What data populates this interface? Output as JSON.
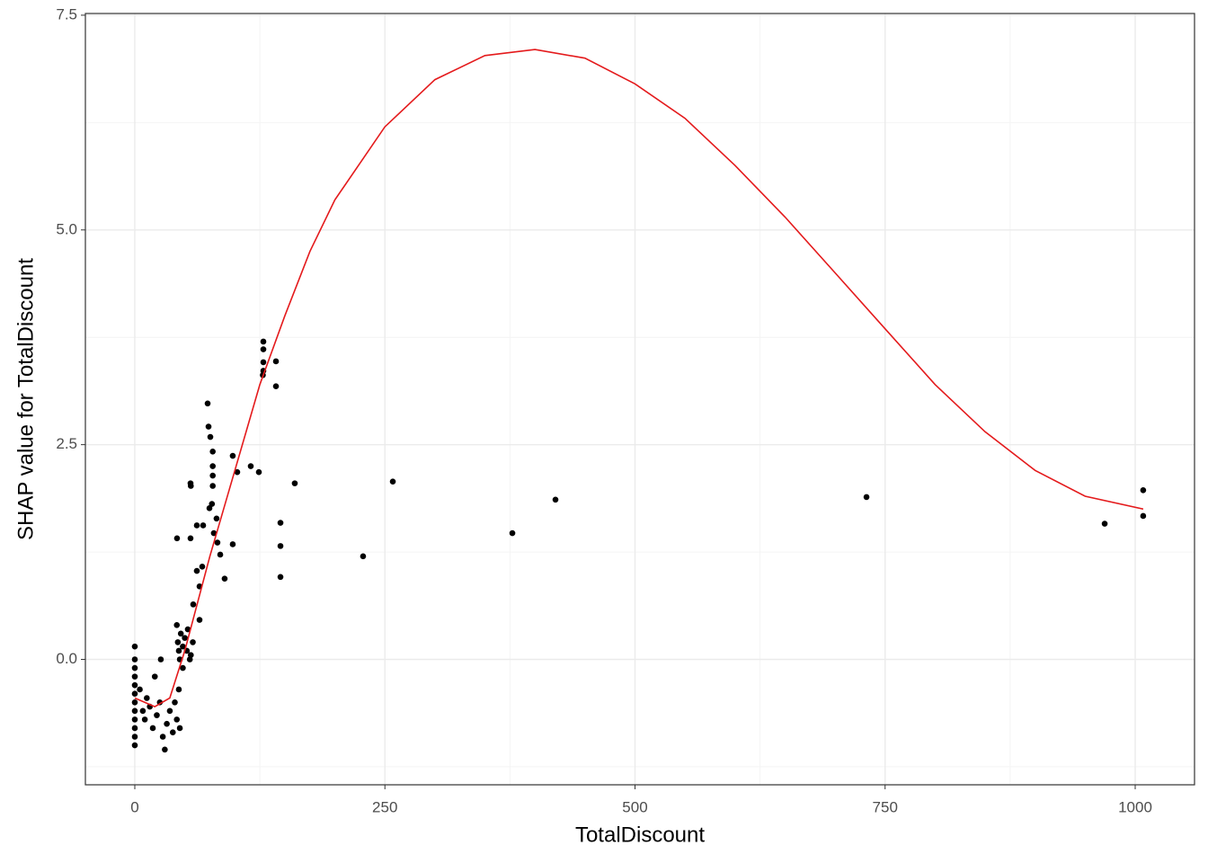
{
  "chart_data": {
    "type": "scatter",
    "x_label": "TotalDiscount",
    "y_label": "SHAP value for TotalDiscount",
    "xlim": [
      -49.4,
      1059.3
    ],
    "ylim": [
      -1.46,
      7.52
    ],
    "xticks": [
      0,
      250,
      500,
      750,
      1000
    ],
    "yticks": [
      {
        "value": 0,
        "label": "0.0"
      },
      2.5,
      {
        "value": 5,
        "label": "5.0"
      },
      {
        "value": 7.5,
        "label": "7.5"
      }
    ],
    "xminorticks": [
      125,
      375,
      625,
      875
    ],
    "yminorticks": [
      -1.25,
      1.25,
      3.75,
      6.25
    ],
    "grid": true,
    "point_color": "#000000",
    "line_color": "#e41a1c",
    "points": {
      "x": [
        0,
        0,
        0,
        0,
        0,
        0,
        0,
        0,
        0,
        0,
        0,
        0,
        5,
        8,
        10,
        12,
        15,
        18,
        20,
        22,
        25,
        26,
        28,
        30,
        32,
        35,
        38,
        40,
        42,
        44,
        45,
        42,
        43,
        44,
        45,
        46,
        48,
        50,
        52,
        55,
        56,
        58,
        53,
        48,
        42.2,
        55.7,
        55.7,
        56,
        58.4,
        62,
        62,
        64.7,
        64.7,
        67.4,
        68.3,
        72.8,
        73.7,
        75.5,
        74.6,
        77.1,
        77.9,
        77.9,
        77.9,
        77.9,
        79,
        81.7,
        82.6,
        85.4,
        89.8,
        97.9,
        97.9,
        102.4,
        115.9,
        124,
        128.5,
        128.5,
        128.5,
        128.5,
        128,
        141.1,
        141.1,
        145.6,
        145.6,
        145.6,
        159.9,
        228.2,
        257.9,
        377.4,
        420.5,
        731.4,
        969.5,
        1008,
        1008
      ],
      "y": [
        0.15,
        0,
        -0.1,
        -0.2,
        -0.3,
        -0.4,
        -0.5,
        -0.6,
        -0.7,
        -0.8,
        -0.9,
        -1.0,
        -0.35,
        -0.6,
        -0.7,
        -0.45,
        -0.55,
        -0.8,
        -0.2,
        -0.65,
        -0.5,
        0,
        -0.9,
        -1.05,
        -0.75,
        -0.6,
        -0.85,
        -0.5,
        -0.7,
        -0.35,
        -0.8,
        0.4,
        0.2,
        0.1,
        0,
        0.3,
        -0.1,
        0.25,
        0.1,
        0,
        0.05,
        0.2,
        0.35,
        0.15,
        1.41,
        1.41,
        2.05,
        2.02,
        0.64,
        1.03,
        1.56,
        0.85,
        0.46,
        1.08,
        1.56,
        2.98,
        2.71,
        2.59,
        1.76,
        1.81,
        2.42,
        2.25,
        2.14,
        2.02,
        1.47,
        1.64,
        1.36,
        1.22,
        0.94,
        1.34,
        2.37,
        2.18,
        2.25,
        2.18,
        3.7,
        3.61,
        3.46,
        3.36,
        3.31,
        3.47,
        3.18,
        1.59,
        1.32,
        0.96,
        2.05,
        1.2,
        2.07,
        1.47,
        1.86,
        1.89,
        1.58,
        1.97,
        1.67
      ]
    },
    "smooth": {
      "x": [
        0,
        20,
        35,
        50,
        75,
        100,
        125,
        150,
        175,
        200,
        250,
        300,
        350,
        400,
        450,
        500,
        550,
        600,
        650,
        700,
        750,
        800,
        850,
        900,
        950,
        1008
      ],
      "y": [
        -0.45,
        -0.55,
        -0.45,
        0.1,
        1.2,
        2.2,
        3.2,
        4.0,
        4.75,
        5.35,
        6.2,
        6.75,
        7.03,
        7.1,
        7.0,
        6.7,
        6.3,
        5.75,
        5.15,
        4.5,
        3.85,
        3.2,
        2.65,
        2.2,
        1.9,
        1.75
      ]
    }
  }
}
